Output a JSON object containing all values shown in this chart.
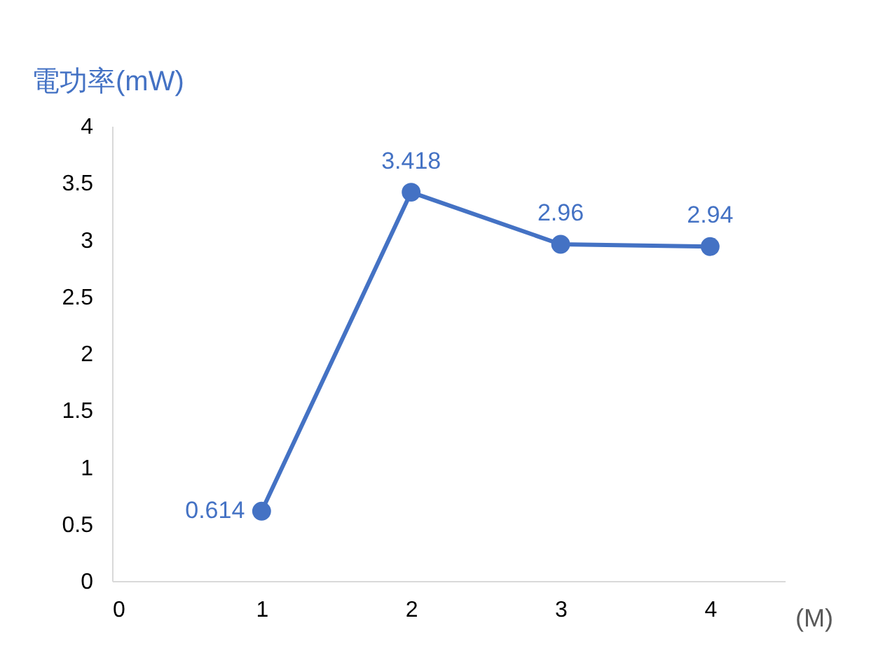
{
  "chart_data": {
    "type": "line",
    "ylabel": "電功率(mW)",
    "xlabel": "(M)",
    "x": [
      1,
      2,
      3,
      4
    ],
    "series": [
      {
        "color": "#4472c4",
        "values": [
          0.614,
          3.418,
          2.96,
          2.94
        ]
      }
    ],
    "xlim": [
      0,
      4.5
    ],
    "xticks": [
      0,
      1,
      2,
      3,
      4
    ],
    "ylim": [
      0,
      4
    ],
    "yticks": [
      0,
      0.5,
      1,
      1.5,
      2,
      2.5,
      3,
      3.5,
      4
    ],
    "data_labels": true,
    "marker": "circle",
    "line_style": "solid",
    "grid": false,
    "legend": false
  }
}
